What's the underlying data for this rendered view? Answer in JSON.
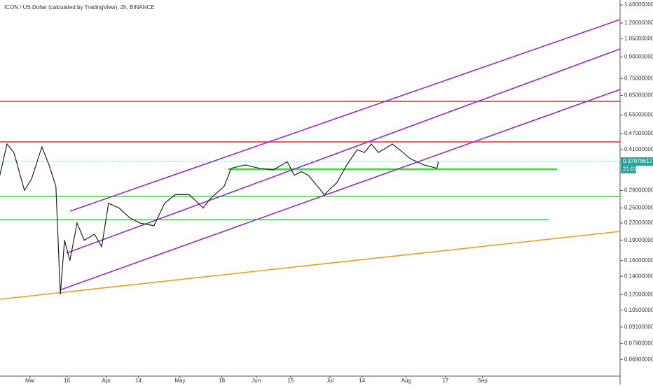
{
  "chart_data": {
    "type": "line",
    "title": "ICON / US Dollar (calculated by TradingView), 2h, BINANCE",
    "log_scale": true,
    "series": [
      {
        "color": "#222222",
        "x": [
          -12.3,
          -9.4,
          -6.6,
          -2.3,
          0.6,
          4.8,
          7.7,
          10.5,
          12.3,
          14.0,
          16.2,
          19.1,
          22.0,
          26.2,
          29.1,
          31.9,
          36.2,
          40.5,
          44.7,
          50.4,
          54.7,
          59.0,
          64.7,
          70.4,
          73.2,
          78.9,
          81.8,
          87.5,
          93.2,
          98.9,
          104.6,
          107.5,
          110.3,
          113.2,
          119.7,
          124.8,
          128.8,
          133.1,
          136.0,
          138.8,
          141.7,
          147.4,
          151.7,
          154.6,
          160.3,
          165.5,
          166.1
        ],
        "values": [
          0.33,
          0.43,
          0.4,
          0.29,
          0.32,
          0.42,
          0.36,
          0.3,
          0.12,
          0.19,
          0.16,
          0.22,
          0.19,
          0.2,
          0.18,
          0.26,
          0.25,
          0.23,
          0.22,
          0.215,
          0.26,
          0.28,
          0.28,
          0.25,
          0.27,
          0.3,
          0.35,
          0.36,
          0.35,
          0.345,
          0.37,
          0.33,
          0.34,
          0.33,
          0.28,
          0.31,
          0.36,
          0.41,
          0.4,
          0.43,
          0.4,
          0.43,
          0.4,
          0.38,
          0.36,
          0.35,
          0.37078617
        ]
      }
    ],
    "last_price": 0.37078617,
    "countdown": "21:01",
    "xlim": [
      -12.25,
      240
    ],
    "xticks": [
      {
        "value": 0,
        "label": "Mar"
      },
      {
        "value": 15,
        "label": "16"
      },
      {
        "value": 31,
        "label": "Apr"
      },
      {
        "value": 44,
        "label": "14"
      },
      {
        "value": 61,
        "label": "May"
      },
      {
        "value": 78,
        "label": "18"
      },
      {
        "value": 92,
        "label": "Jun"
      },
      {
        "value": 106,
        "label": "15"
      },
      {
        "value": 122,
        "label": "Jul"
      },
      {
        "value": 135,
        "label": "14"
      },
      {
        "value": 153,
        "label": "Aug"
      },
      {
        "value": 169,
        "label": "17"
      },
      {
        "value": 184,
        "label": "Sep"
      }
    ],
    "ylim": [
      0.06,
      1.46
    ],
    "yticks": [
      {
        "value": 1.4,
        "label": "1.40000000"
      },
      {
        "value": 1.2,
        "label": "1.20000000"
      },
      {
        "value": 1.05,
        "label": "1.05000000"
      },
      {
        "value": 0.9,
        "label": "0.90000000"
      },
      {
        "value": 0.75,
        "label": "0.75000000"
      },
      {
        "value": 0.65,
        "label": "0.65000000"
      },
      {
        "value": 0.55,
        "label": "0.55000000"
      },
      {
        "value": 0.47,
        "label": "0.47000000"
      },
      {
        "value": 0.41,
        "label": "0.41000000"
      },
      {
        "value": 0.29,
        "label": "0.29000000"
      },
      {
        "value": 0.25,
        "label": "0.25000000"
      },
      {
        "value": 0.22,
        "label": "0.22000000"
      },
      {
        "value": 0.19,
        "label": "0.19000000"
      },
      {
        "value": 0.16,
        "label": "0.16000000"
      },
      {
        "value": 0.14,
        "label": "0.14000000"
      },
      {
        "value": 0.12,
        "label": "0.12000000"
      },
      {
        "value": 0.105,
        "label": "0.10500000"
      },
      {
        "value": 0.091,
        "label": "0.09100000"
      },
      {
        "value": 0.079,
        "label": "0.07900000"
      },
      {
        "value": 0.069,
        "label": "0.06900000"
      }
    ]
  }
}
